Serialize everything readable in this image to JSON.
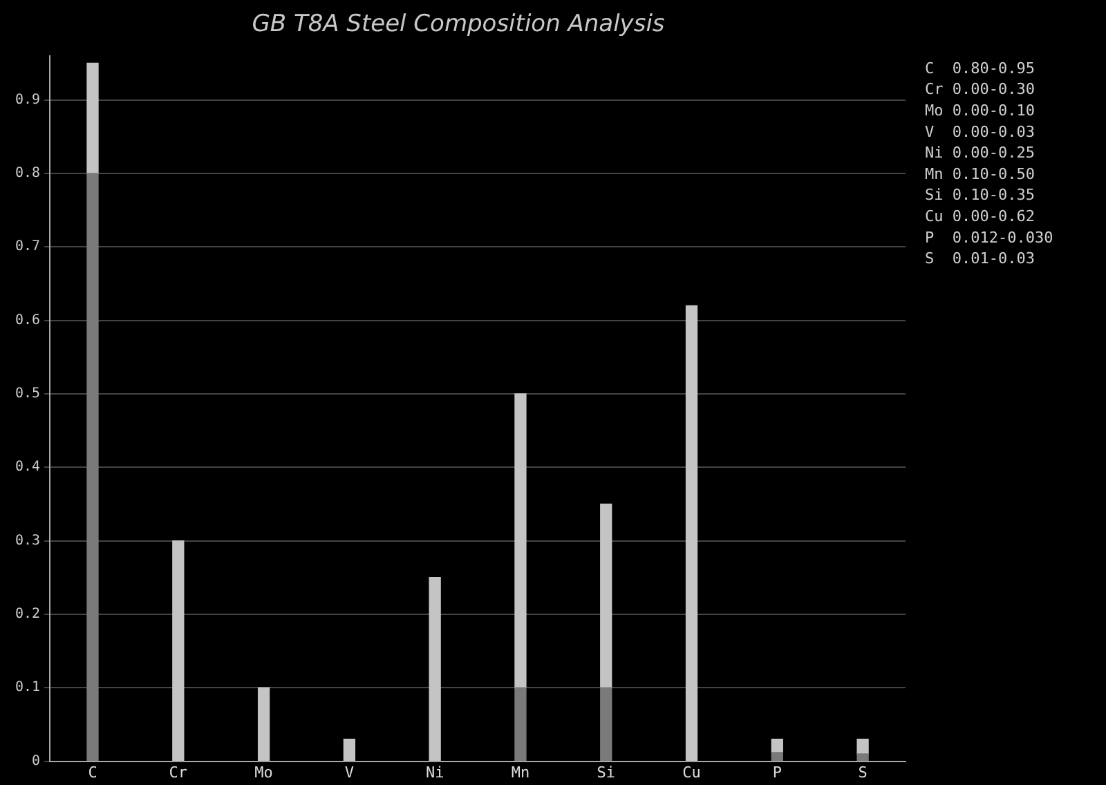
{
  "chart_data": {
    "type": "bar",
    "title": "GB T8A Steel Composition Analysis",
    "stacked": true,
    "categories": [
      "C",
      "Cr",
      "Mo",
      "V",
      "Ni",
      "Mn",
      "Si",
      "Cu",
      "P",
      "S"
    ],
    "series": [
      {
        "color": "#7a7a7a",
        "values": [
          0.8,
          0,
          0,
          0,
          0,
          0.1,
          0.1,
          0,
          0.012,
          0.01
        ]
      },
      {
        "color": "#c4c4c4",
        "values": [
          0.15,
          0.3,
          0.1,
          0.03,
          0.25,
          0.4,
          0.25,
          0.62,
          0.018,
          0.02
        ]
      }
    ],
    "ylim": [
      0,
      0.96
    ],
    "yticks": [
      0,
      {
        "value": 0.1,
        "label": "0.1"
      },
      {
        "value": 0.2,
        "label": "0.2"
      },
      {
        "value": 0.3,
        "label": "0.3"
      },
      {
        "value": 0.4,
        "label": "0.4"
      },
      {
        "value": 0.5,
        "label": "0.5"
      },
      {
        "value": 0.6,
        "label": "0.6"
      },
      {
        "value": 0.7,
        "label": "0.7"
      },
      {
        "value": 0.8,
        "label": "0.8"
      },
      {
        "value": 0.9,
        "label": "0.9"
      }
    ],
    "grid": "y",
    "annotations": [
      "C  0.80-0.95",
      "Cr 0.00-0.30",
      "Mo 0.00-0.10",
      "V  0.00-0.03",
      "Ni 0.00-0.25",
      "Mn 0.10-0.50",
      "Si 0.10-0.35",
      "Cu 0.00-0.62",
      "P  0.012-0.030",
      "S  0.01-0.03"
    ]
  }
}
